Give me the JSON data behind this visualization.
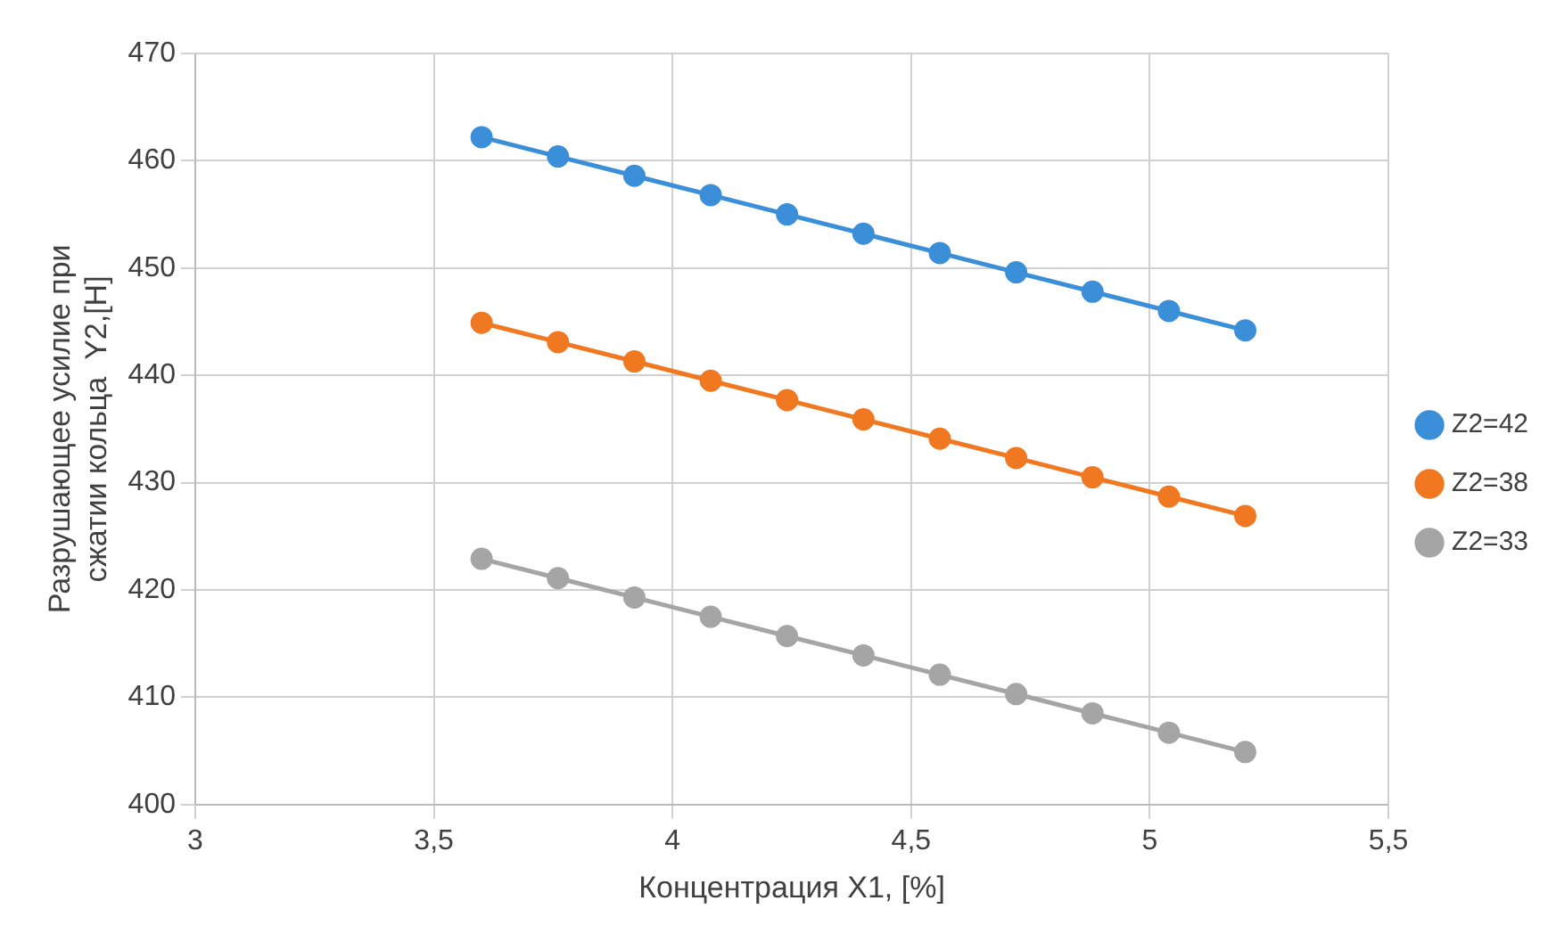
{
  "chart_data": {
    "type": "line",
    "xlabel": "Концентрация X1, [%]",
    "ylabel": "Разрушающее усилие при сжатии кольца  Y2,[H]",
    "x": [
      3.6,
      3.76,
      3.92,
      4.08,
      4.24,
      4.4,
      4.56,
      4.72,
      4.88,
      5.04,
      5.2
    ],
    "series": [
      {
        "name": "Z2=42",
        "color": "#3a8fd8",
        "values": [
          462.2,
          460.4,
          458.6,
          456.8,
          455.0,
          453.2,
          451.4,
          449.6,
          447.8,
          446.0,
          444.2
        ]
      },
      {
        "name": "Z2=38",
        "color": "#f07820",
        "values": [
          444.9,
          443.1,
          441.3,
          439.5,
          437.7,
          435.9,
          434.1,
          432.3,
          430.5,
          428.7,
          426.9
        ]
      },
      {
        "name": "Z2=33",
        "color": "#a5a5a5",
        "values": [
          422.9,
          421.1,
          419.3,
          417.5,
          415.7,
          413.9,
          412.1,
          410.3,
          408.5,
          406.7,
          404.9
        ]
      }
    ],
    "xlim": [
      3,
      5.5
    ],
    "xticks": [
      3,
      {
        "value": 3.5,
        "label": "3,5"
      },
      4,
      {
        "value": 4.5,
        "label": "4,5"
      },
      5,
      {
        "value": 5.5,
        "label": "5,5"
      }
    ],
    "ylim": [
      400,
      470
    ],
    "yticks": [
      400,
      410,
      420,
      430,
      440,
      450,
      460,
      470
    ],
    "grid": true,
    "legend": "right",
    "marker": "circle",
    "line_style": "solid"
  }
}
